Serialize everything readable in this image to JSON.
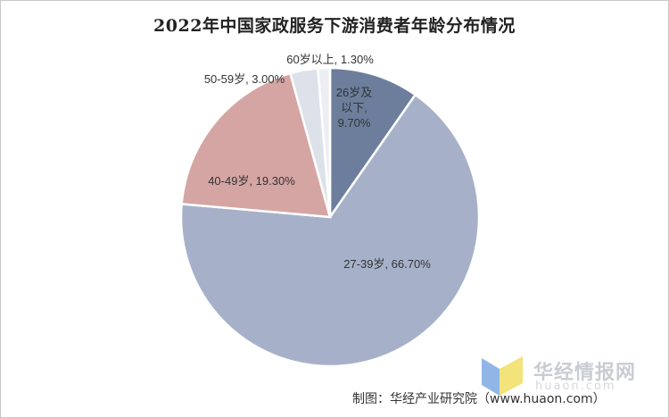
{
  "chart_data": {
    "type": "pie",
    "title": "2022年中国家政服务下游消费者年龄分布情况",
    "unit": "%",
    "slices": [
      {
        "name": "26岁及以下",
        "value": 9.7,
        "label_lines": [
          "26岁及",
          "以下,",
          "9.70%"
        ],
        "color": "#6d7e9c",
        "label_inside": true
      },
      {
        "name": "27-39岁",
        "value": 66.7,
        "label_lines": [
          "27-39岁, 66.70%"
        ],
        "color": "#a6b1c9",
        "label_inside": true
      },
      {
        "name": "40-49岁",
        "value": 19.3,
        "label_lines": [
          "40-49岁, 19.30%"
        ],
        "color": "#d5a5a3",
        "label_inside": true
      },
      {
        "name": "50-59岁",
        "value": 3.0,
        "label_lines": [
          "50-59岁, 3.00%"
        ],
        "color": "#dde2ea",
        "label_inside": false
      },
      {
        "name": "60岁以上",
        "value": 1.3,
        "label_lines": [
          "60岁以上, 1.30%"
        ],
        "color": "#eceef3",
        "label_inside": false
      }
    ]
  },
  "source_text": "制图：华经产业研究院（www.huaon.com）",
  "watermark": {
    "brand": "华经情报网",
    "url": "huaon.com",
    "colors": [
      "#8fb6e6",
      "#f4e27a"
    ]
  }
}
